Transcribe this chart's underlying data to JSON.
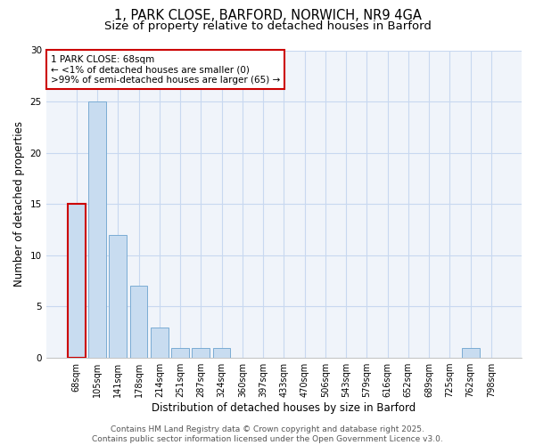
{
  "title_line1": "1, PARK CLOSE, BARFORD, NORWICH, NR9 4GA",
  "title_line2": "Size of property relative to detached houses in Barford",
  "xlabel": "Distribution of detached houses by size in Barford",
  "ylabel": "Number of detached properties",
  "bin_labels": [
    "68sqm",
    "105sqm",
    "141sqm",
    "178sqm",
    "214sqm",
    "251sqm",
    "287sqm",
    "324sqm",
    "360sqm",
    "397sqm",
    "433sqm",
    "470sqm",
    "506sqm",
    "543sqm",
    "579sqm",
    "616sqm",
    "652sqm",
    "689sqm",
    "725sqm",
    "762sqm",
    "798sqm"
  ],
  "values": [
    15,
    25,
    12,
    7,
    3,
    1,
    1,
    1,
    0,
    0,
    0,
    0,
    0,
    0,
    0,
    0,
    0,
    0,
    0,
    1,
    0
  ],
  "bar_color": "#c8dcf0",
  "bar_edgecolor": "#7aacd4",
  "highlight_bar_index": 0,
  "highlight_edgecolor": "#cc0000",
  "ylim": [
    0,
    30
  ],
  "yticks": [
    0,
    5,
    10,
    15,
    20,
    25,
    30
  ],
  "background_color": "#ffffff",
  "plot_bg_color": "#f0f4fa",
  "grid_color": "#c8d8f0",
  "annotation_text": "1 PARK CLOSE: 68sqm\n← <1% of detached houses are smaller (0)\n>99% of semi-detached houses are larger (65) →",
  "annotation_box_edgecolor": "#cc0000",
  "annotation_box_facecolor": "#ffffff",
  "footer_text": "Contains HM Land Registry data © Crown copyright and database right 2025.\nContains public sector information licensed under the Open Government Licence v3.0.",
  "title_fontsize": 10.5,
  "subtitle_fontsize": 9.5,
  "axis_label_fontsize": 8.5,
  "tick_fontsize": 7,
  "annotation_fontsize": 7.5,
  "footer_fontsize": 6.5
}
